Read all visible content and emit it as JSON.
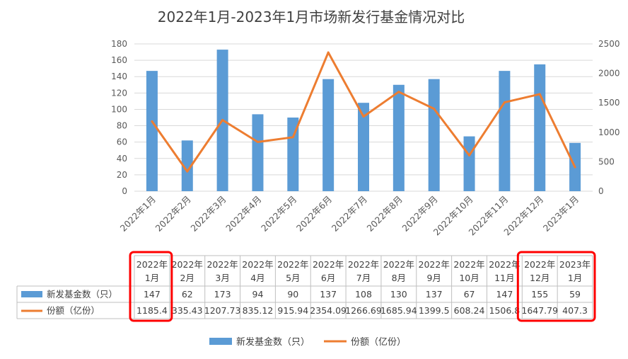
{
  "chart_data": {
    "type": "bar",
    "title": "2022年1月-2023年1月市场新发行基金情况对比",
    "categories": [
      "2022年1月",
      "2022年2月",
      "2022年3月",
      "2022年4月",
      "2022年5月",
      "2022年6月",
      "2022年7月",
      "2022年8月",
      "2022年9月",
      "2022年10月",
      "2022年11月",
      "2022年12月",
      "2023年1月"
    ],
    "table_headers": [
      [
        "2022年",
        "1月"
      ],
      [
        "2022年",
        "2月"
      ],
      [
        "2022年",
        "3月"
      ],
      [
        "2022年",
        "4月"
      ],
      [
        "2022年",
        "5月"
      ],
      [
        "2022年",
        "6月"
      ],
      [
        "2022年",
        "7月"
      ],
      [
        "2022年",
        "8月"
      ],
      [
        "2022年",
        "9月"
      ],
      [
        "2022年",
        "10月"
      ],
      [
        "2022年",
        "11月"
      ],
      [
        "2022年",
        "12月"
      ],
      [
        "2023年",
        "1月"
      ]
    ],
    "series": [
      {
        "name": "新发基金数（只）",
        "kind": "bar",
        "axis": "left",
        "color": "#5B9BD5",
        "values": [
          147,
          62,
          173,
          94,
          90,
          137,
          108,
          130,
          137,
          67,
          147,
          155,
          59
        ],
        "labels": [
          "147",
          "62",
          "173",
          "94",
          "90",
          "137",
          "108",
          "130",
          "137",
          "67",
          "147",
          "155",
          "59"
        ]
      },
      {
        "name": "份额（亿份）",
        "kind": "line",
        "axis": "right",
        "color": "#ED7D31",
        "values": [
          1185.4,
          335.43,
          1207.73,
          835.12,
          915.94,
          2354.09,
          1266.69,
          1685.94,
          1399.5,
          608.24,
          1506.8,
          1647.79,
          407.3
        ],
        "labels": [
          "1185.4",
          "335.43",
          "1207.73",
          "835.12",
          "915.94",
          "2354.09",
          "1266.69",
          "1685.94",
          "1399.5",
          "608.24",
          "1506.8",
          "1647.79",
          "407.3"
        ]
      }
    ],
    "y_left": {
      "min": 0,
      "max": 180,
      "ticks": [
        "0",
        "20",
        "40",
        "60",
        "80",
        "100",
        "120",
        "140",
        "160",
        "180"
      ]
    },
    "y_right": {
      "min": 0,
      "max": 2500,
      "ticks": [
        "0",
        "500",
        "1000",
        "1500",
        "2000",
        "2500"
      ]
    },
    "grid": true,
    "legend_position": "bottom",
    "highlight_columns": [
      0,
      11,
      12
    ],
    "highlight_color": "#FF0000"
  }
}
